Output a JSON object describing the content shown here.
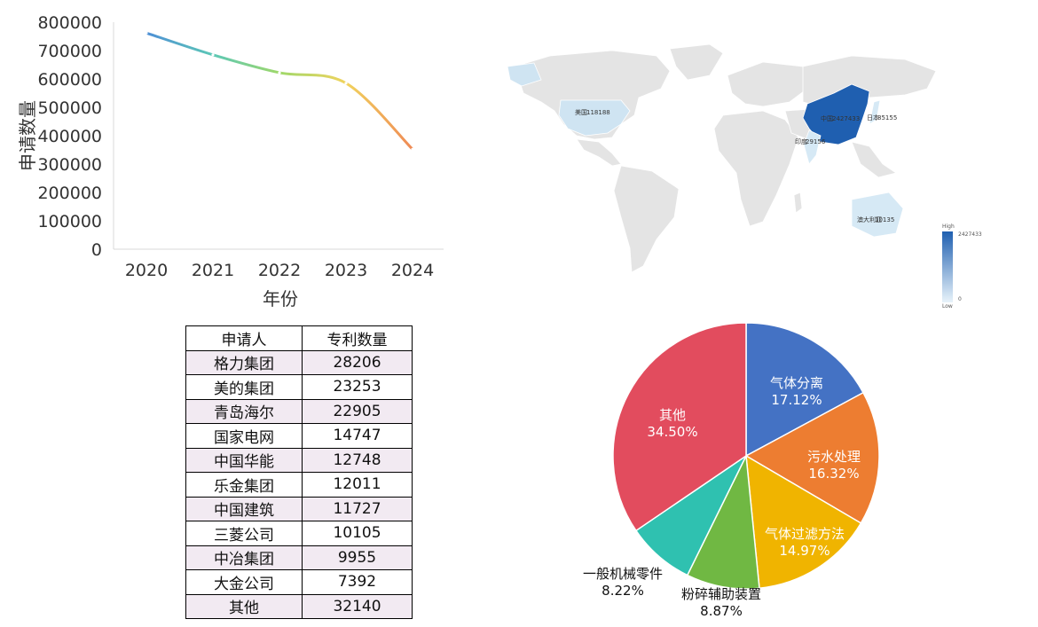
{
  "chart_data": [
    {
      "type": "line",
      "title": "",
      "xlabel": "年份",
      "ylabel": "申请数量",
      "x": [
        2020,
        2021,
        2022,
        2023,
        2024
      ],
      "series": [
        {
          "values": [
            762000,
            685000,
            622000,
            585000,
            352000
          ]
        }
      ],
      "ylim": [
        0,
        800000
      ],
      "yticks": [
        "0",
        "100000",
        "200000",
        "300000",
        "400000",
        "500000",
        "600000",
        "700000",
        "800000"
      ],
      "xticks": [
        "2020",
        "2021",
        "2022",
        "2023",
        "2024"
      ],
      "gradient_colors": [
        "#4e8fd6",
        "#5cc8b6",
        "#9fd86a",
        "#f1d35d",
        "#ef8a55"
      ],
      "grid": false
    },
    {
      "type": "table",
      "columns": [
        "申请人",
        "专利数量"
      ],
      "rows": [
        [
          "格力集团",
          "28206"
        ],
        [
          "美的集团",
          "23253"
        ],
        [
          "青岛海尔",
          "22905"
        ],
        [
          "国家电网",
          "14747"
        ],
        [
          "中国华能",
          "12748"
        ],
        [
          "乐金集团",
          "12011"
        ],
        [
          "中国建筑",
          "11727"
        ],
        [
          "三菱公司",
          "10105"
        ],
        [
          "中冶集团",
          "9955"
        ],
        [
          "大金公司",
          "7392"
        ],
        [
          "其他",
          "32140"
        ]
      ]
    },
    {
      "type": "pie",
      "slices": [
        {
          "label": "气体分离",
          "value": 17.12,
          "display": "17.12%",
          "color": "#4472c4"
        },
        {
          "label": "污水处理",
          "value": 16.32,
          "display": "16.32%",
          "color": "#ed7d31"
        },
        {
          "label": "气体过滤方法",
          "value": 14.97,
          "display": "14.97%",
          "color": "#f0b400"
        },
        {
          "label": "粉碎辅助装置",
          "value": 8.87,
          "display": "8.87%",
          "color": "#70b843"
        },
        {
          "label": "一般机械零件",
          "value": 8.22,
          "display": "8.22%",
          "color": "#2fc1b0"
        },
        {
          "label": "其他",
          "value": 34.5,
          "display": "34.50%",
          "color": "#e24c5e"
        }
      ]
    },
    {
      "type": "map",
      "regions": [
        {
          "label": "中国",
          "value": 2427433
        },
        {
          "label": "美国",
          "value": 118188
        },
        {
          "label": "日本",
          "value": 85155
        },
        {
          "label": "印度",
          "value": 29156
        },
        {
          "label": "澳大利亚",
          "value": 10135
        }
      ],
      "legend": {
        "high_label": "High",
        "low_label": "Low",
        "max": "2427433",
        "min": "0"
      },
      "colors": {
        "land": "#e4e4e4",
        "low": "#d6e9f5",
        "high": "#1f5fb0"
      }
    }
  ]
}
